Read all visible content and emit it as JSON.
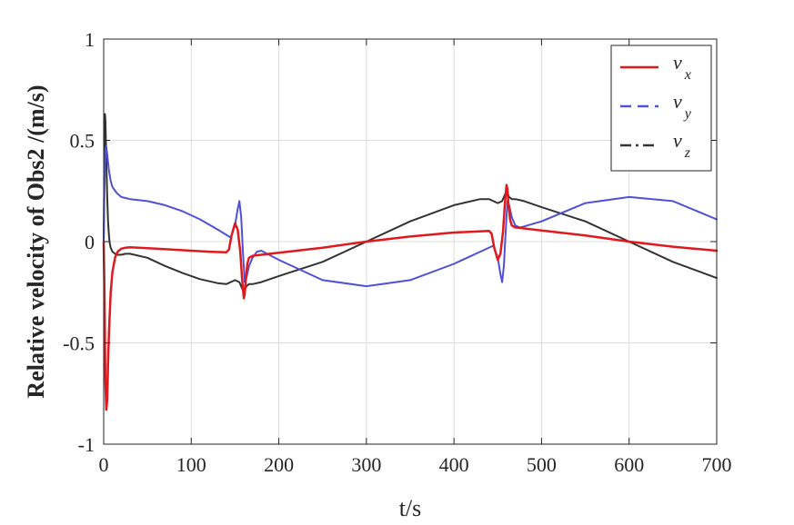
{
  "chart_data": {
    "type": "line",
    "xlabel": "t/s",
    "ylabel": "Relative velocity of Obs2 /(m/s)",
    "xlim": [
      0,
      700
    ],
    "ylim": [
      -1,
      1
    ],
    "x_ticks": [
      0,
      100,
      200,
      300,
      400,
      500,
      600,
      700
    ],
    "y_ticks": [
      -1,
      -0.5,
      0,
      0.5,
      1
    ],
    "x_tick_labels": [
      "0",
      "100",
      "200",
      "300",
      "400",
      "500",
      "600",
      "700"
    ],
    "y_tick_labels": [
      "-1",
      "-0.5",
      "0",
      "0.5",
      "1"
    ],
    "grid": true,
    "legend_position": "top-right",
    "series": [
      {
        "name": "v_x",
        "legend_main": "v",
        "legend_sub": "x",
        "color": "#e0191e",
        "style": "solid",
        "x": [
          0,
          1,
          2,
          3,
          4,
          5,
          6,
          8,
          10,
          13,
          16,
          20,
          25,
          30,
          40,
          60,
          80,
          100,
          120,
          140,
          143,
          146,
          150,
          153,
          156,
          158,
          160,
          161,
          162,
          164,
          166,
          170,
          180,
          200,
          250,
          300,
          350,
          400,
          440,
          443,
          446,
          450,
          453,
          456,
          458,
          460,
          461,
          462,
          464,
          466,
          470,
          480,
          500,
          550,
          600,
          650,
          700
        ],
        "y": [
          0.0,
          -0.3,
          -0.7,
          -0.83,
          -0.78,
          -0.6,
          -0.45,
          -0.25,
          -0.15,
          -0.08,
          -0.05,
          -0.035,
          -0.03,
          -0.028,
          -0.03,
          -0.035,
          -0.04,
          -0.045,
          -0.05,
          -0.053,
          -0.04,
          0.03,
          0.09,
          0.06,
          -0.05,
          -0.18,
          -0.28,
          -0.26,
          -0.2,
          -0.11,
          -0.08,
          -0.07,
          -0.065,
          -0.055,
          -0.03,
          0.0,
          0.025,
          0.045,
          0.053,
          0.04,
          -0.03,
          -0.09,
          -0.06,
          0.05,
          0.18,
          0.28,
          0.26,
          0.2,
          0.11,
          0.08,
          0.07,
          0.065,
          0.055,
          0.03,
          0.0,
          -0.025,
          -0.045
        ]
      },
      {
        "name": "v_y",
        "legend_main": "v",
        "legend_sub": "y",
        "color": "#5050d8",
        "style": "dashed",
        "x": [
          0,
          1,
          2,
          3,
          4,
          6,
          8,
          10,
          15,
          20,
          30,
          50,
          70,
          90,
          110,
          130,
          145,
          150,
          153,
          155,
          157,
          159,
          161,
          163,
          166,
          170,
          175,
          180,
          200,
          250,
          300,
          350,
          400,
          430,
          445,
          450,
          453,
          455,
          457,
          459,
          461,
          463,
          466,
          470,
          475,
          480,
          500,
          550,
          600,
          650,
          700
        ],
        "y": [
          0.0,
          0.3,
          0.45,
          0.47,
          0.43,
          0.35,
          0.3,
          0.27,
          0.24,
          0.22,
          0.21,
          0.2,
          0.18,
          0.15,
          0.11,
          0.06,
          0.02,
          0.08,
          0.16,
          0.2,
          0.12,
          -0.05,
          -0.2,
          -0.18,
          -0.12,
          -0.08,
          -0.05,
          -0.045,
          -0.09,
          -0.19,
          -0.22,
          -0.19,
          -0.11,
          -0.05,
          -0.02,
          -0.08,
          -0.16,
          -0.2,
          -0.12,
          0.05,
          0.2,
          0.18,
          0.12,
          0.08,
          0.07,
          0.075,
          0.1,
          0.19,
          0.22,
          0.2,
          0.11
        ]
      },
      {
        "name": "v_z",
        "legend_main": "v",
        "legend_sub": "z",
        "color": "#333333",
        "style": "dashdot",
        "x": [
          0,
          1,
          1.5,
          2,
          3,
          4,
          5,
          6,
          7,
          8,
          10,
          13,
          16,
          20,
          25,
          30,
          50,
          70,
          90,
          110,
          130,
          140,
          150,
          155,
          158,
          160,
          163,
          166,
          170,
          180,
          200,
          250,
          300,
          350,
          400,
          430,
          440,
          450,
          455,
          458,
          460,
          463,
          466,
          470,
          480,
          500,
          550,
          600,
          650,
          700
        ],
        "y": [
          0.0,
          0.5,
          0.63,
          0.6,
          0.4,
          0.22,
          0.1,
          0.03,
          -0.01,
          -0.03,
          -0.05,
          -0.06,
          -0.065,
          -0.065,
          -0.06,
          -0.06,
          -0.08,
          -0.12,
          -0.155,
          -0.185,
          -0.205,
          -0.21,
          -0.19,
          -0.2,
          -0.23,
          -0.25,
          -0.22,
          -0.21,
          -0.21,
          -0.2,
          -0.17,
          -0.1,
          0.0,
          0.1,
          0.18,
          0.21,
          0.21,
          0.19,
          0.2,
          0.23,
          0.25,
          0.22,
          0.21,
          0.21,
          0.2,
          0.17,
          0.1,
          0.0,
          -0.1,
          -0.18
        ]
      }
    ]
  }
}
